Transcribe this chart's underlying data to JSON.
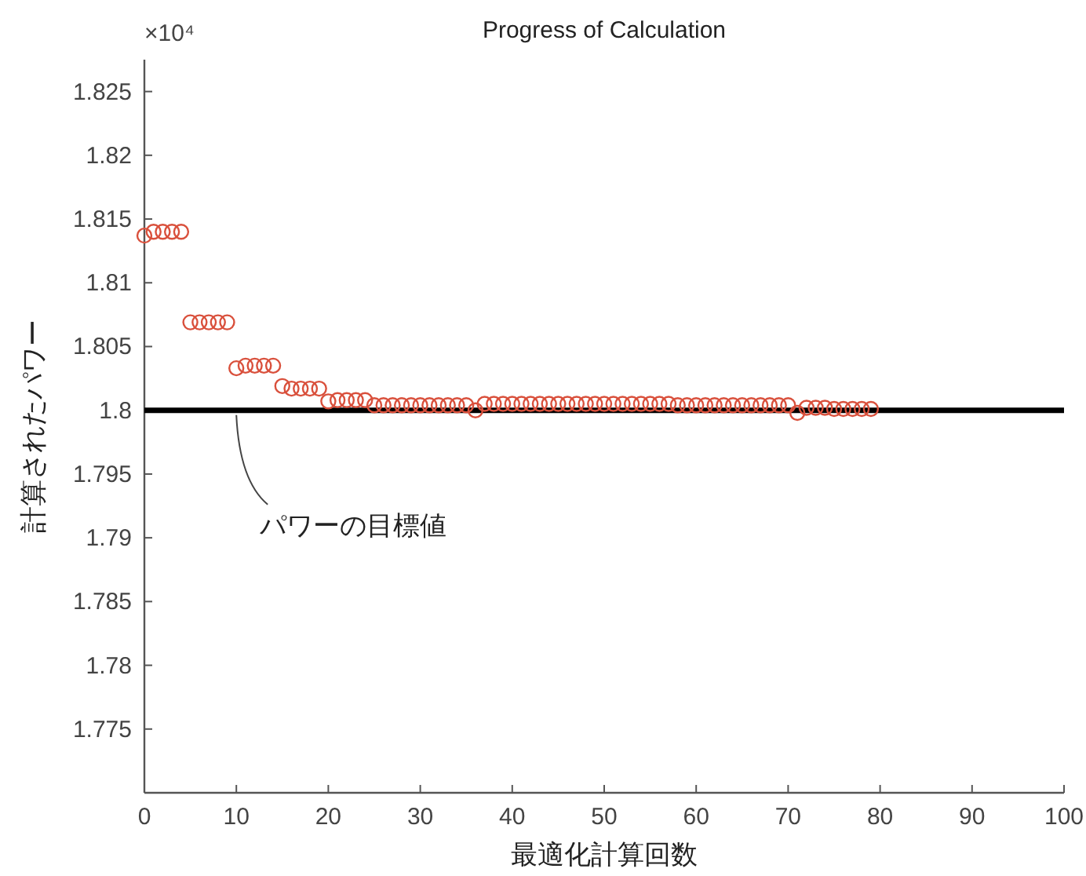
{
  "chart_data": {
    "type": "scatter",
    "title": "Progress of Calculation",
    "xlabel": "最適化計算回数",
    "ylabel": "計算されたパワー",
    "annotations": [
      "×10⁴",
      {
        "text": "パワーの目標値",
        "x": 10,
        "y": 1.8
      }
    ],
    "x": [
      0,
      1,
      2,
      3,
      4,
      5,
      6,
      7,
      8,
      9,
      10,
      11,
      12,
      13,
      14,
      15,
      16,
      17,
      18,
      19,
      20,
      21,
      22,
      23,
      24,
      25,
      26,
      27,
      28,
      29,
      30,
      31,
      32,
      33,
      34,
      35,
      36,
      37,
      38,
      39,
      40,
      41,
      42,
      43,
      44,
      45,
      46,
      47,
      48,
      49,
      50,
      51,
      52,
      53,
      54,
      55,
      56,
      57,
      58,
      59,
      60,
      61,
      62,
      63,
      64,
      65,
      66,
      67,
      68,
      69,
      70,
      71,
      72,
      73,
      74,
      75,
      76,
      77,
      78,
      79
    ],
    "series": [
      {
        "color": "#d9503c",
        "values": [
          1.8137,
          1.814,
          1.814,
          1.814,
          1.814,
          1.8069,
          1.8069,
          1.8069,
          1.8069,
          1.8069,
          1.8033,
          1.8035,
          1.8035,
          1.8035,
          1.8035,
          1.8019,
          1.8017,
          1.8017,
          1.8017,
          1.8017,
          1.8007,
          1.8008,
          1.8008,
          1.8008,
          1.8008,
          1.8004,
          1.8004,
          1.8004,
          1.8004,
          1.8004,
          1.8004,
          1.8004,
          1.8004,
          1.8004,
          1.8004,
          1.8004,
          1.8,
          1.8005,
          1.8005,
          1.8005,
          1.8005,
          1.8005,
          1.8005,
          1.8005,
          1.8005,
          1.8005,
          1.8005,
          1.8005,
          1.8005,
          1.8005,
          1.8005,
          1.8005,
          1.8005,
          1.8005,
          1.8005,
          1.8005,
          1.8005,
          1.8005,
          1.8004,
          1.8004,
          1.8004,
          1.8004,
          1.8004,
          1.8004,
          1.8004,
          1.8004,
          1.8004,
          1.8004,
          1.8004,
          1.8004,
          1.8004,
          1.7998,
          1.8002,
          1.8002,
          1.8002,
          1.8001,
          1.8001,
          1.8001,
          1.8001,
          1.8001
        ]
      }
    ],
    "marker": "circle",
    "xlim": [
      0,
      100
    ],
    "xticks": [
      0,
      10,
      20,
      30,
      40,
      50,
      60,
      70,
      80,
      90,
      100
    ],
    "ylim": [
      1.77,
      1.8275
    ],
    "yticks": [
      1.775,
      1.78,
      1.785,
      1.79,
      1.795,
      1.8,
      1.805,
      1.81,
      1.815,
      1.82,
      1.825
    ],
    "ref_lines": [
      {
        "axis": "y",
        "value": 1.8,
        "color": "#000000"
      }
    ]
  }
}
